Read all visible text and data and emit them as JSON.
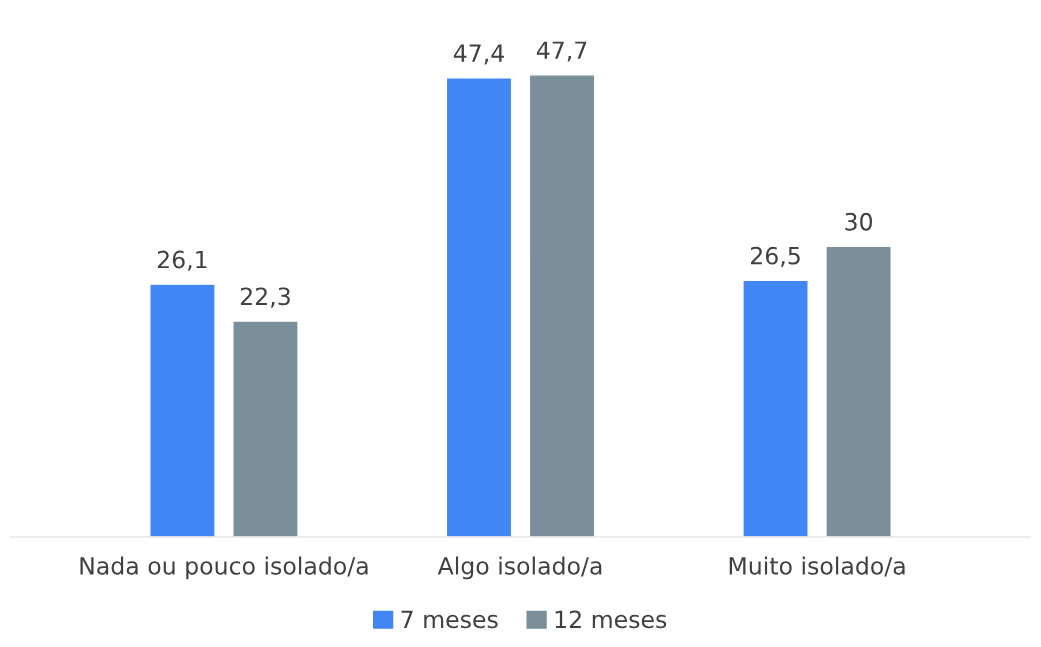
{
  "chart_data": {
    "type": "bar",
    "categories": [
      "Nada ou pouco isolado/a",
      "Algo isolado/a",
      "Muito isolado/a"
    ],
    "series": [
      {
        "name": "7 meses",
        "color": "#4285f4",
        "values": [
          26.1,
          47.4,
          26.5
        ],
        "value_labels": [
          "26,1",
          "47,4",
          "26,5"
        ]
      },
      {
        "name": "12 meses",
        "color": "#7a8f9a",
        "values": [
          22.3,
          47.7,
          30
        ],
        "value_labels": [
          "22,3",
          "47,7",
          "30"
        ]
      }
    ],
    "legend": "bottom"
  }
}
